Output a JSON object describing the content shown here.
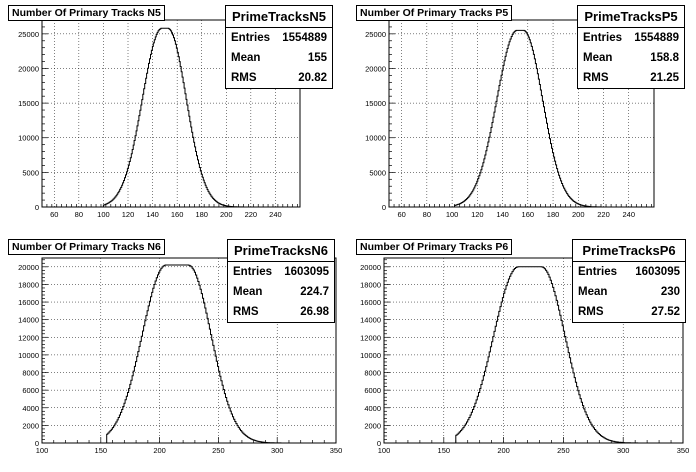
{
  "footer_text": "",
  "chart_data": [
    {
      "type": "area",
      "title": "Number Of Primary Tracks N5",
      "stats": {
        "name": "PrimeTracksN5",
        "entries_label": "Entries",
        "entries": "1554889",
        "mean_label": "Mean",
        "mean": "155",
        "rms_label": "RMS",
        "rms": "20.82"
      },
      "xlim": [
        50,
        260
      ],
      "ylim": [
        0,
        27000
      ],
      "xticks": [
        60,
        80,
        100,
        120,
        140,
        160,
        180,
        200,
        220,
        240
      ],
      "yticks": [
        0,
        5000,
        10000,
        15000,
        20000,
        25000
      ],
      "peak_x": 150,
      "peak_y": 25800,
      "x_range": [
        100,
        225
      ],
      "sigma": 20.8,
      "flat": 0.12,
      "grid": true
    },
    {
      "type": "area",
      "title": "Number Of Primary Tracks P5",
      "stats": {
        "name": "PrimeTracksP5",
        "entries_label": "Entries",
        "entries": "1554889",
        "mean_label": "Mean",
        "mean": "158.8",
        "rms_label": "RMS",
        "rms": "21.25"
      },
      "xlim": [
        50,
        260
      ],
      "ylim": [
        0,
        27000
      ],
      "xticks": [
        60,
        80,
        100,
        120,
        140,
        160,
        180,
        200,
        220,
        240
      ],
      "yticks": [
        0,
        5000,
        10000,
        15000,
        20000,
        25000
      ],
      "peak_x": 154,
      "peak_y": 25500,
      "x_range": [
        102,
        230
      ],
      "sigma": 21.2,
      "flat": 0.12,
      "grid": true
    },
    {
      "type": "area",
      "title": "Number Of Primary Tracks N6",
      "stats": {
        "name": "PrimeTracksN6",
        "entries_label": "Entries",
        "entries": "1603095",
        "mean_label": "Mean",
        "mean": "224.7",
        "rms_label": "RMS",
        "rms": "26.98"
      },
      "xlim": [
        100,
        350
      ],
      "ylim": [
        0,
        21000
      ],
      "xticks": [
        100,
        150,
        200,
        250,
        300,
        350
      ],
      "yticks": [
        0,
        2000,
        4000,
        6000,
        8000,
        10000,
        12000,
        14000,
        16000,
        18000,
        20000
      ],
      "peak_x": 215,
      "peak_y": 20200,
      "x_range": [
        155,
        312
      ],
      "sigma": 27,
      "flat": 0.35,
      "grid": true
    },
    {
      "type": "area",
      "title": "Number Of Primary Tracks P6",
      "stats": {
        "name": "PrimeTracksP6",
        "entries_label": "Entries",
        "entries": "1603095",
        "mean_label": "Mean",
        "mean": "230",
        "rms_label": "RMS",
        "rms": "27.52"
      },
      "xlim": [
        100,
        350
      ],
      "ylim": [
        0,
        21000
      ],
      "xticks": [
        100,
        150,
        200,
        250,
        300,
        350
      ],
      "yticks": [
        0,
        2000,
        4000,
        6000,
        8000,
        10000,
        12000,
        14000,
        16000,
        18000,
        20000
      ],
      "peak_x": 222,
      "peak_y": 20000,
      "x_range": [
        160,
        320
      ],
      "sigma": 27.5,
      "flat": 0.35,
      "grid": true
    }
  ]
}
